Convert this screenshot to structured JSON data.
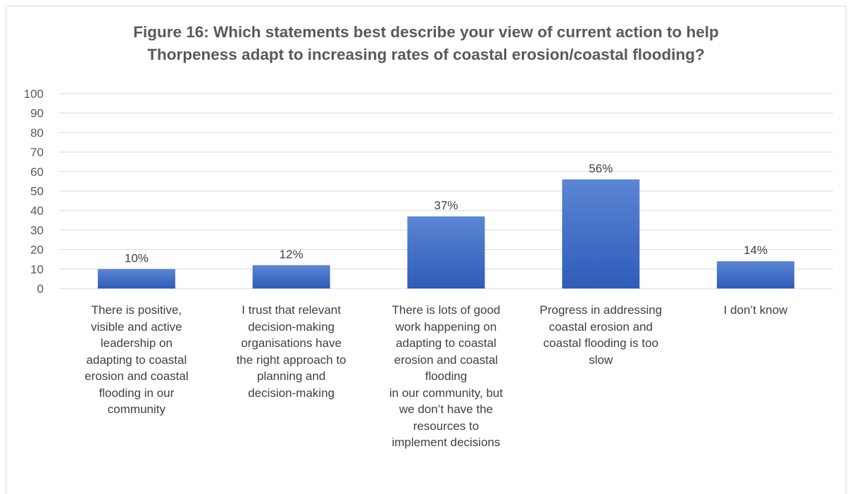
{
  "chart_data": {
    "type": "bar",
    "title": "Figure 16: Which statements best describe your view of current action to help Thorpeness adapt to increasing rates of coastal erosion/coastal flooding?",
    "title_lines": [
      "Figure 16: Which statements best describe your view of current action to help",
      "Thorpeness adapt to increasing rates of coastal erosion/coastal flooding?"
    ],
    "categories": [
      "There is positive, visible and active leadership on adapting to coastal erosion and coastal flooding in our community",
      "I trust that relevant decision-making organisations have the right approach to planning and decision-making",
      "There is lots of good work happening on adapting to coastal erosion and coastal flooding in our community, but we don’t have the resources to implement decisions",
      "Progress in addressing coastal erosion and coastal flooding is too slow",
      "I don’t know"
    ],
    "category_lines": [
      [
        "There is positive,",
        "visible and active",
        "leadership on",
        "adapting to coastal",
        "erosion and coastal",
        "flooding in our",
        "community"
      ],
      [
        "I trust that relevant",
        "decision-making",
        "organisations have",
        "the right approach to",
        "planning and",
        "decision-making"
      ],
      [
        "There is lots of good",
        "work happening on",
        "adapting to coastal",
        "erosion and coastal",
        "flooding",
        "in our community, but",
        "we don’t have the",
        "resources to",
        "implement decisions"
      ],
      [
        "Progress in addressing",
        "coastal erosion and",
        "coastal flooding is too",
        "slow"
      ],
      [
        "I don’t know"
      ]
    ],
    "values": [
      10,
      12,
      37,
      56,
      14
    ],
    "data_labels": [
      "10%",
      "12%",
      "37%",
      "56%",
      "14%"
    ],
    "ylim": [
      0,
      100
    ],
    "yticks": [
      0,
      10,
      20,
      30,
      40,
      50,
      60,
      70,
      80,
      90,
      100
    ],
    "xlabel": "",
    "ylabel": "",
    "grid": true,
    "legend": "none",
    "colors": {
      "bar_top": "#5b86d4",
      "bar_bottom": "#2e5cb8",
      "grid": "#d9d9d9",
      "text": "#595959"
    }
  }
}
